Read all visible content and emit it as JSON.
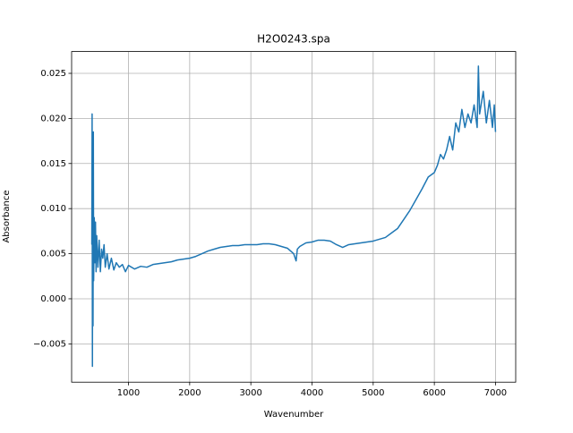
{
  "chart_data": {
    "type": "line",
    "title": "H2O0243.spa",
    "x_label": "Wavenumber",
    "y_label": "Absorbance",
    "x": [
      400,
      405,
      410,
      415,
      420,
      425,
      430,
      440,
      450,
      460,
      470,
      480,
      500,
      520,
      540,
      560,
      580,
      600,
      620,
      650,
      680,
      720,
      760,
      800,
      850,
      900,
      950,
      1000,
      1100,
      1200,
      1300,
      1400,
      1500,
      1600,
      1700,
      1800,
      1900,
      2000,
      2100,
      2200,
      2300,
      2400,
      2500,
      2600,
      2700,
      2800,
      2900,
      3000,
      3100,
      3200,
      3300,
      3400,
      3500,
      3600,
      3700,
      3740,
      3760,
      3800,
      3900,
      4000,
      4100,
      4200,
      4300,
      4400,
      4500,
      4600,
      4700,
      4800,
      4900,
      5000,
      5100,
      5200,
      5300,
      5400,
      5500,
      5600,
      5700,
      5800,
      5900,
      6000,
      6050,
      6100,
      6150,
      6200,
      6250,
      6300,
      6350,
      6400,
      6450,
      6500,
      6550,
      6600,
      6650,
      6700,
      6720,
      6740,
      6800,
      6850,
      6900,
      6950,
      6980,
      7000
    ],
    "series": [
      {
        "name": "H2O0243.spa",
        "color": "#1f77b4",
        "values": [
          0.006,
          0.0205,
          -0.0075,
          0.018,
          -0.003,
          0.0185,
          0.002,
          0.009,
          0.004,
          0.0085,
          0.003,
          0.007,
          0.0035,
          0.0065,
          0.003,
          0.0055,
          0.0045,
          0.006,
          0.0035,
          0.005,
          0.0033,
          0.0045,
          0.0032,
          0.004,
          0.0035,
          0.0038,
          0.003,
          0.0037,
          0.0033,
          0.0036,
          0.0035,
          0.0038,
          0.0039,
          0.004,
          0.0041,
          0.0043,
          0.0044,
          0.0045,
          0.0047,
          0.005,
          0.0053,
          0.0055,
          0.0057,
          0.0058,
          0.0059,
          0.0059,
          0.006,
          0.006,
          0.006,
          0.0061,
          0.0061,
          0.006,
          0.0058,
          0.0056,
          0.005,
          0.0042,
          0.0055,
          0.0058,
          0.0062,
          0.0063,
          0.0065,
          0.0065,
          0.0064,
          0.006,
          0.0057,
          0.006,
          0.0061,
          0.0062,
          0.0063,
          0.0064,
          0.0066,
          0.0068,
          0.0073,
          0.0078,
          0.0088,
          0.0098,
          0.011,
          0.0122,
          0.0135,
          0.014,
          0.0148,
          0.016,
          0.0155,
          0.0165,
          0.018,
          0.0165,
          0.0195,
          0.0185,
          0.021,
          0.019,
          0.0205,
          0.0195,
          0.0215,
          0.019,
          0.0258,
          0.0205,
          0.023,
          0.0195,
          0.022,
          0.019,
          0.0215,
          0.0185
        ]
      }
    ],
    "xlim": [
      70,
      7330
    ],
    "ylim": [
      -0.00925,
      0.02742
    ],
    "xticks": [
      1000,
      2000,
      3000,
      4000,
      5000,
      6000,
      7000
    ],
    "yticks": [
      {
        "value": -0.005,
        "label": "−0.005"
      },
      {
        "value": 0,
        "label": "0.000"
      },
      {
        "value": 0.005,
        "label": "0.005"
      },
      {
        "value": 0.01,
        "label": "0.010"
      },
      {
        "value": 0.015,
        "label": "0.015"
      },
      {
        "value": 0.02,
        "label": "0.020"
      },
      {
        "value": 0.025,
        "label": "0.025"
      }
    ],
    "grid": true
  }
}
